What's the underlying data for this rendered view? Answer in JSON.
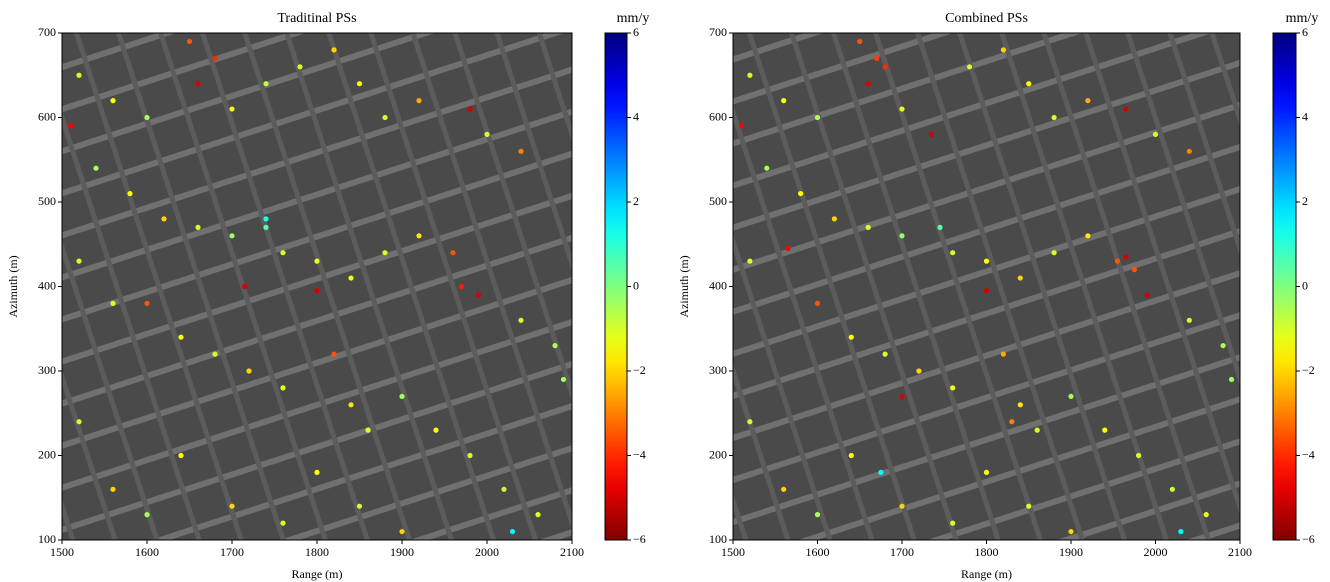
{
  "chart_data": [
    {
      "type": "scatter",
      "title": "Traditinal PSs",
      "x_label": "Range (m)",
      "y_label": "Azimuth (m)",
      "xlim": [
        1500,
        2100
      ],
      "ylim": [
        100,
        700
      ],
      "xticks": [
        1500,
        1600,
        1700,
        1800,
        1900,
        2000,
        2100
      ],
      "yticks": [
        100,
        200,
        300,
        400,
        500,
        600,
        700
      ],
      "colormap": "jet_r",
      "colorbar": {
        "label": "mm/y",
        "lim": [
          -6,
          6
        ],
        "ticks": [
          {
            "value": -6,
            "label": "−6"
          },
          {
            "value": -4,
            "label": "−4"
          },
          {
            "value": -2,
            "label": "−2"
          },
          0,
          2,
          4,
          6
        ]
      },
      "x": [
        1520,
        1560,
        1600,
        1650,
        1680,
        1660,
        1700,
        1740,
        1780,
        1820,
        1850,
        1880,
        1920,
        1980,
        2000,
        2040,
        1510,
        1540,
        1580,
        1620,
        1660,
        1700,
        1740,
        1760,
        1800,
        1840,
        1880,
        1920,
        1960,
        1970,
        1990,
        2040,
        2080,
        1520,
        1560,
        1600,
        1640,
        1680,
        1715,
        1720,
        1760,
        1800,
        1820,
        1840,
        1860,
        1900,
        1940,
        1980,
        2020,
        2060,
        1520,
        1560,
        1600,
        1640,
        1700,
        1760,
        1800,
        1850,
        1900,
        2030,
        1740,
        2090
      ],
      "y": [
        650,
        620,
        600,
        690,
        670,
        640,
        610,
        640,
        660,
        680,
        640,
        600,
        620,
        610,
        580,
        560,
        590,
        540,
        510,
        480,
        470,
        460,
        470,
        440,
        430,
        410,
        440,
        460,
        440,
        400,
        390,
        360,
        330,
        430,
        380,
        380,
        340,
        320,
        400,
        300,
        280,
        395,
        320,
        260,
        230,
        270,
        230,
        200,
        160,
        130,
        240,
        160,
        130,
        200,
        140,
        120,
        180,
        140,
        110,
        110,
        480,
        290
      ],
      "c": [
        -1,
        -1.5,
        -0.5,
        -3.5,
        -4,
        -5,
        -1.2,
        -0.8,
        -1,
        -2,
        -1.5,
        -1,
        -2.5,
        -5,
        -1,
        -3,
        -4.5,
        -0.5,
        -1.5,
        -2,
        -1,
        -0.3,
        0.5,
        -1,
        -1.2,
        -1.5,
        -1,
        -1.8,
        -3.5,
        -4.2,
        -5,
        -1,
        -0.5,
        -1,
        -1.2,
        -3.5,
        -1.5,
        -1,
        -5,
        -2,
        -1.3,
        -5,
        -3.5,
        -1.8,
        -1,
        -0.5,
        -1.5,
        -1,
        -0.8,
        -1.2,
        -1,
        -2,
        -0.5,
        -1.5,
        -2,
        -1,
        -1.5,
        -1,
        -2,
        1.5,
        1.2,
        -0.4
      ]
    },
    {
      "type": "scatter",
      "title": "Combined PSs",
      "x_label": "Range (m)",
      "y_label": "Azimuth (m)",
      "xlim": [
        1500,
        2100
      ],
      "ylim": [
        100,
        700
      ],
      "xticks": [
        1500,
        1600,
        1700,
        1800,
        1900,
        2000,
        2100
      ],
      "yticks": [
        100,
        200,
        300,
        400,
        500,
        600,
        700
      ],
      "colormap": "jet_r",
      "colorbar": {
        "label": "mm/y",
        "lim": [
          -6,
          6
        ],
        "ticks": [
          {
            "value": -6,
            "label": "−6"
          },
          {
            "value": -4,
            "label": "−4"
          },
          {
            "value": -2,
            "label": "−2"
          },
          0,
          2,
          4,
          6
        ]
      },
      "x": [
        1520,
        1560,
        1600,
        1650,
        1670,
        1680,
        1660,
        1700,
        1735,
        1780,
        1820,
        1850,
        1880,
        1920,
        1965,
        2000,
        2040,
        1510,
        1540,
        1580,
        1620,
        1660,
        1700,
        1745,
        1760,
        1800,
        1840,
        1880,
        1920,
        1955,
        1965,
        1975,
        1990,
        2040,
        2080,
        1520,
        1565,
        1600,
        1640,
        1680,
        1700,
        1720,
        1760,
        1800,
        1820,
        1830,
        1840,
        1860,
        1900,
        1940,
        1980,
        2020,
        2060,
        1520,
        1560,
        1600,
        1640,
        1700,
        1760,
        1800,
        1850,
        1900,
        2030,
        1675,
        2090
      ],
      "y": [
        650,
        620,
        600,
        690,
        670,
        660,
        640,
        610,
        580,
        660,
        680,
        640,
        600,
        620,
        610,
        580,
        560,
        590,
        540,
        510,
        480,
        470,
        460,
        470,
        440,
        430,
        410,
        440,
        460,
        430,
        435,
        420,
        390,
        360,
        330,
        430,
        445,
        380,
        340,
        320,
        270,
        300,
        280,
        395,
        320,
        240,
        260,
        230,
        270,
        230,
        200,
        160,
        130,
        240,
        160,
        130,
        200,
        140,
        120,
        180,
        140,
        110,
        110,
        180,
        290
      ],
      "c": [
        -1,
        -1.5,
        -0.5,
        -3.5,
        -3.8,
        -4,
        -5,
        -1.2,
        -5,
        -1,
        -2,
        -1.5,
        -1,
        -2.5,
        -5,
        -1,
        -3,
        -4.5,
        -0.5,
        -1.5,
        -2,
        -1,
        -0.3,
        0.5,
        -1,
        -1.5,
        -2,
        -1,
        -1.8,
        -3.5,
        -5,
        -3.5,
        -5,
        -1,
        -0.5,
        -1,
        -4.5,
        -3.5,
        -1.5,
        -1,
        -5,
        -2,
        -1.3,
        -5,
        -2.5,
        -3,
        -1.8,
        -1,
        -0.5,
        -1.5,
        -1,
        -0.8,
        -1.2,
        -1,
        -2,
        -0.5,
        -1.5,
        -2,
        -1,
        -1.5,
        -1,
        -2,
        1.5,
        1.5,
        -0.4
      ]
    }
  ]
}
